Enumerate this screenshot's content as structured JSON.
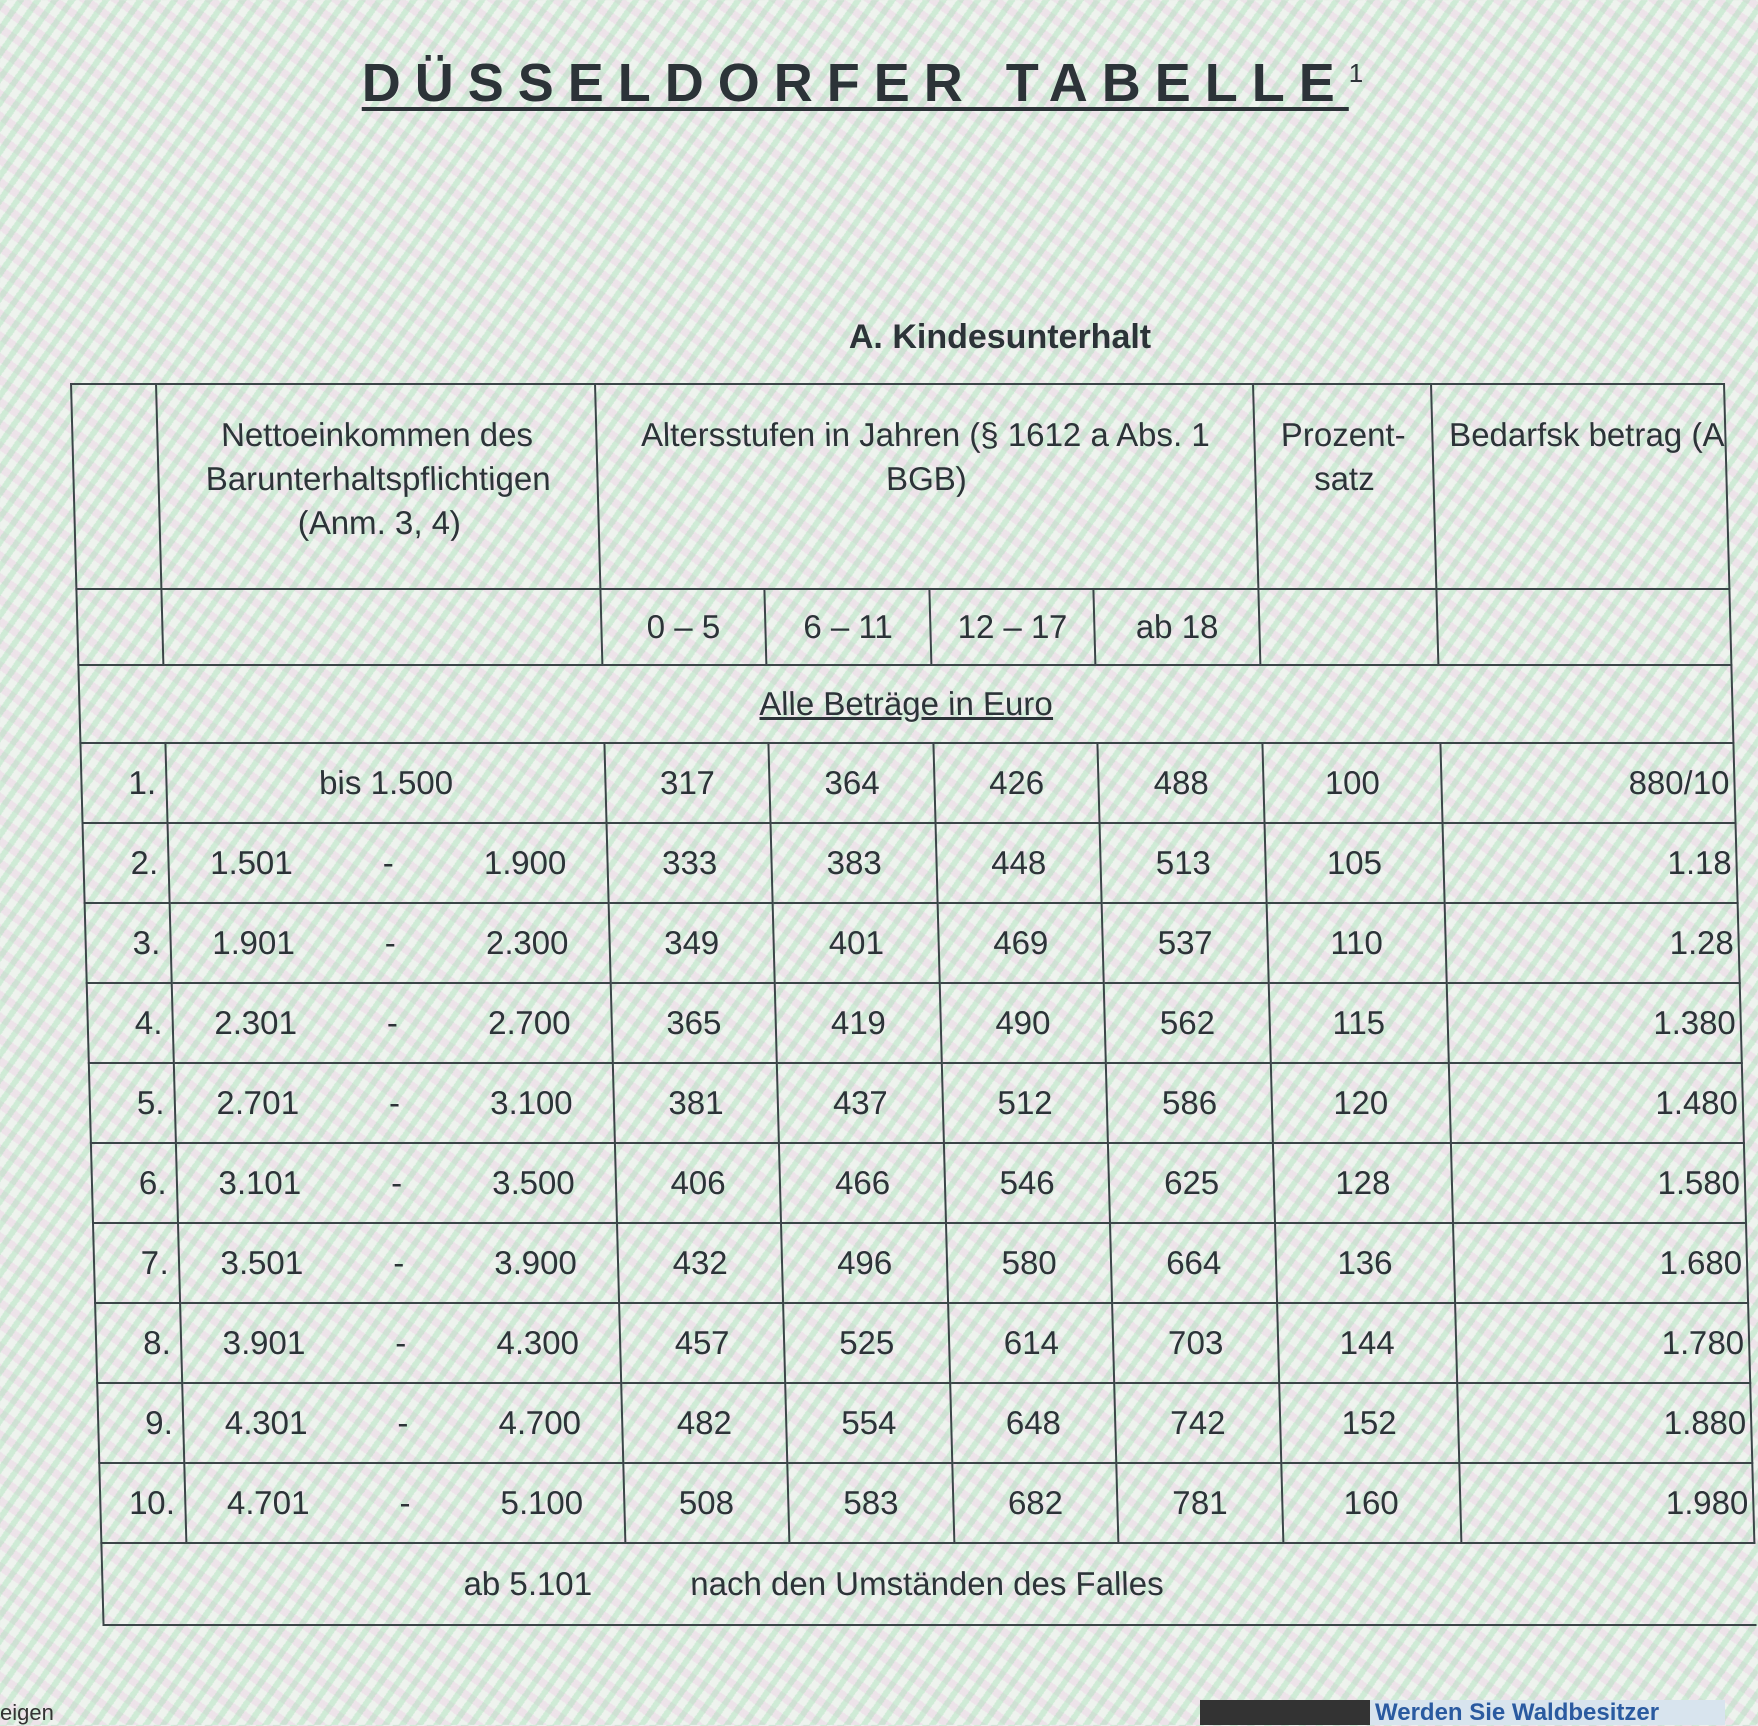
{
  "title": "DÜSSELDORFER TABELLE",
  "title_footnote": "1",
  "section": "A. Kindesunterhalt",
  "header": {
    "income": "Nettoeinkommen des Barunterhaltspflichtigen (Anm. 3, 4)",
    "age_groups": "Altersstufen in Jahren (§ 1612 a Abs. 1 BGB)",
    "percent": "Prozent- satz",
    "need": "Bedarfsk betrag (A",
    "ages": [
      "0 – 5",
      "6 – 11",
      "12 – 17",
      "ab 18"
    ]
  },
  "currency_note": "Alle Beträge in Euro",
  "rows": [
    {
      "nr": "1.",
      "from": "bis 1.500",
      "to": "",
      "v": [
        "317",
        "364",
        "426",
        "488"
      ],
      "pct": "100",
      "need": "880/10"
    },
    {
      "nr": "2.",
      "from": "1.501",
      "to": "1.900",
      "v": [
        "333",
        "383",
        "448",
        "513"
      ],
      "pct": "105",
      "need": "1.18"
    },
    {
      "nr": "3.",
      "from": "1.901",
      "to": "2.300",
      "v": [
        "349",
        "401",
        "469",
        "537"
      ],
      "pct": "110",
      "need": "1.28"
    },
    {
      "nr": "4.",
      "from": "2.301",
      "to": "2.700",
      "v": [
        "365",
        "419",
        "490",
        "562"
      ],
      "pct": "115",
      "need": "1.380"
    },
    {
      "nr": "5.",
      "from": "2.701",
      "to": "3.100",
      "v": [
        "381",
        "437",
        "512",
        "586"
      ],
      "pct": "120",
      "need": "1.480"
    },
    {
      "nr": "6.",
      "from": "3.101",
      "to": "3.500",
      "v": [
        "406",
        "466",
        "546",
        "625"
      ],
      "pct": "128",
      "need": "1.580"
    },
    {
      "nr": "7.",
      "from": "3.501",
      "to": "3.900",
      "v": [
        "432",
        "496",
        "580",
        "664"
      ],
      "pct": "136",
      "need": "1.680"
    },
    {
      "nr": "8.",
      "from": "3.901",
      "to": "4.300",
      "v": [
        "457",
        "525",
        "614",
        "703"
      ],
      "pct": "144",
      "need": "1.780"
    },
    {
      "nr": "9.",
      "from": "4.301",
      "to": "4.700",
      "v": [
        "482",
        "554",
        "648",
        "742"
      ],
      "pct": "152",
      "need": "1.880"
    },
    {
      "nr": "10.",
      "from": "4.701",
      "to": "5.100",
      "v": [
        "508",
        "583",
        "682",
        "781"
      ],
      "pct": "160",
      "need": "1.980"
    }
  ],
  "range_sep": "-",
  "last_row": {
    "from": "ab 5.101",
    "text": "nach den Umständen des Falles"
  },
  "taskbar": {
    "left_text": "eigen",
    "ad_text": "Werden Sie Waldbesitzer"
  }
}
